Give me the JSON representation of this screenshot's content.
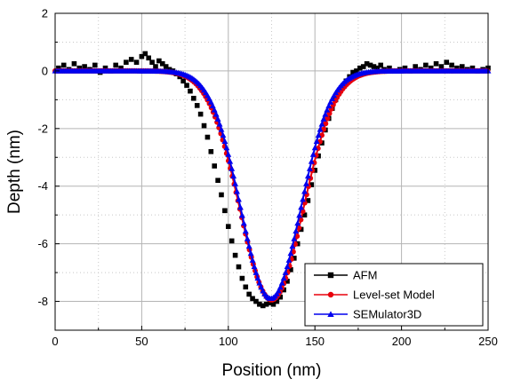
{
  "chart_data": {
    "type": "scatter",
    "xlabel": "Position (nm)",
    "ylabel": "Depth (nm)",
    "xlim": [
      0,
      250
    ],
    "ylim": [
      -9,
      2
    ],
    "x_ticks": [
      "0",
      "50",
      "100",
      "150",
      "200",
      "250"
    ],
    "y_ticks": [
      "2",
      "0",
      "-2",
      "-4",
      "-6",
      "-8"
    ],
    "grid": true,
    "legend_position": "bottom-right",
    "series": [
      {
        "name": "AFM",
        "marker": "square",
        "color": "#000000",
        "points": [
          [
            2,
            0.1
          ],
          [
            5,
            0.2
          ],
          [
            8,
            0.05
          ],
          [
            11,
            0.25
          ],
          [
            14,
            0.1
          ],
          [
            17,
            0.15
          ],
          [
            20,
            0.05
          ],
          [
            23,
            0.2
          ],
          [
            26,
            -0.05
          ],
          [
            29,
            0.1
          ],
          [
            32,
            0.0
          ],
          [
            35,
            0.2
          ],
          [
            38,
            0.1
          ],
          [
            41,
            0.3
          ],
          [
            44,
            0.4
          ],
          [
            47,
            0.3
          ],
          [
            50,
            0.5
          ],
          [
            52,
            0.6
          ],
          [
            54,
            0.45
          ],
          [
            56,
            0.3
          ],
          [
            58,
            0.15
          ],
          [
            60,
            0.35
          ],
          [
            62,
            0.25
          ],
          [
            64,
            0.15
          ],
          [
            66,
            0.05
          ],
          [
            68,
            0.0
          ],
          [
            70,
            -0.1
          ],
          [
            72,
            -0.2
          ],
          [
            74,
            -0.35
          ],
          [
            76,
            -0.5
          ],
          [
            78,
            -0.7
          ],
          [
            80,
            -0.95
          ],
          [
            82,
            -1.2
          ],
          [
            84,
            -1.5
          ],
          [
            86,
            -1.9
          ],
          [
            88,
            -2.3
          ],
          [
            90,
            -2.8
          ],
          [
            92,
            -3.3
          ],
          [
            94,
            -3.8
          ],
          [
            96,
            -4.3
          ],
          [
            98,
            -4.85
          ],
          [
            100,
            -5.4
          ],
          [
            102,
            -5.9
          ],
          [
            104,
            -6.4
          ],
          [
            106,
            -6.8
          ],
          [
            108,
            -7.2
          ],
          [
            110,
            -7.5
          ],
          [
            112,
            -7.75
          ],
          [
            114,
            -7.9
          ],
          [
            116,
            -8.0
          ],
          [
            118,
            -8.1
          ],
          [
            120,
            -8.15
          ],
          [
            122,
            -8.1
          ],
          [
            124,
            -8.05
          ],
          [
            126,
            -8.1
          ],
          [
            128,
            -8.0
          ],
          [
            130,
            -7.85
          ],
          [
            132,
            -7.6
          ],
          [
            134,
            -7.3
          ],
          [
            136,
            -6.9
          ],
          [
            138,
            -6.5
          ],
          [
            140,
            -6.0
          ],
          [
            142,
            -5.5
          ],
          [
            144,
            -5.0
          ],
          [
            146,
            -4.5
          ],
          [
            148,
            -3.95
          ],
          [
            150,
            -3.45
          ],
          [
            152,
            -2.95
          ],
          [
            154,
            -2.5
          ],
          [
            156,
            -2.05
          ],
          [
            158,
            -1.65
          ],
          [
            160,
            -1.3
          ],
          [
            162,
            -1.0
          ],
          [
            164,
            -0.75
          ],
          [
            166,
            -0.55
          ],
          [
            168,
            -0.35
          ],
          [
            170,
            -0.2
          ],
          [
            172,
            -0.05
          ],
          [
            174,
            0.0
          ],
          [
            176,
            0.1
          ],
          [
            178,
            0.15
          ],
          [
            180,
            0.25
          ],
          [
            182,
            0.2
          ],
          [
            184,
            0.15
          ],
          [
            186,
            0.1
          ],
          [
            188,
            0.2
          ],
          [
            190,
            0.05
          ],
          [
            193,
            0.1
          ],
          [
            196,
            0.0
          ],
          [
            199,
            0.05
          ],
          [
            202,
            0.1
          ],
          [
            205,
            0.0
          ],
          [
            208,
            0.15
          ],
          [
            211,
            0.05
          ],
          [
            214,
            0.2
          ],
          [
            217,
            0.1
          ],
          [
            220,
            0.25
          ],
          [
            223,
            0.15
          ],
          [
            226,
            0.3
          ],
          [
            229,
            0.2
          ],
          [
            232,
            0.1
          ],
          [
            235,
            0.15
          ],
          [
            238,
            0.05
          ],
          [
            241,
            0.1
          ],
          [
            244,
            0.0
          ],
          [
            247,
            0.05
          ],
          [
            250,
            0.1
          ]
        ]
      },
      {
        "name": "Level-set Model",
        "marker": "circle",
        "color": "#e8000b",
        "model": {
          "center": 125,
          "depth": 7.95,
          "sigma": 18.2,
          "x_start": 0,
          "x_end": 250,
          "step": 1.1
        }
      },
      {
        "name": "SEMulator3D",
        "marker": "triangle",
        "color": "#0000ee",
        "model": {
          "center": 124.5,
          "depth": 7.9,
          "sigma": 17.3,
          "x_start": 0,
          "x_end": 250,
          "step": 1.0
        }
      }
    ]
  }
}
